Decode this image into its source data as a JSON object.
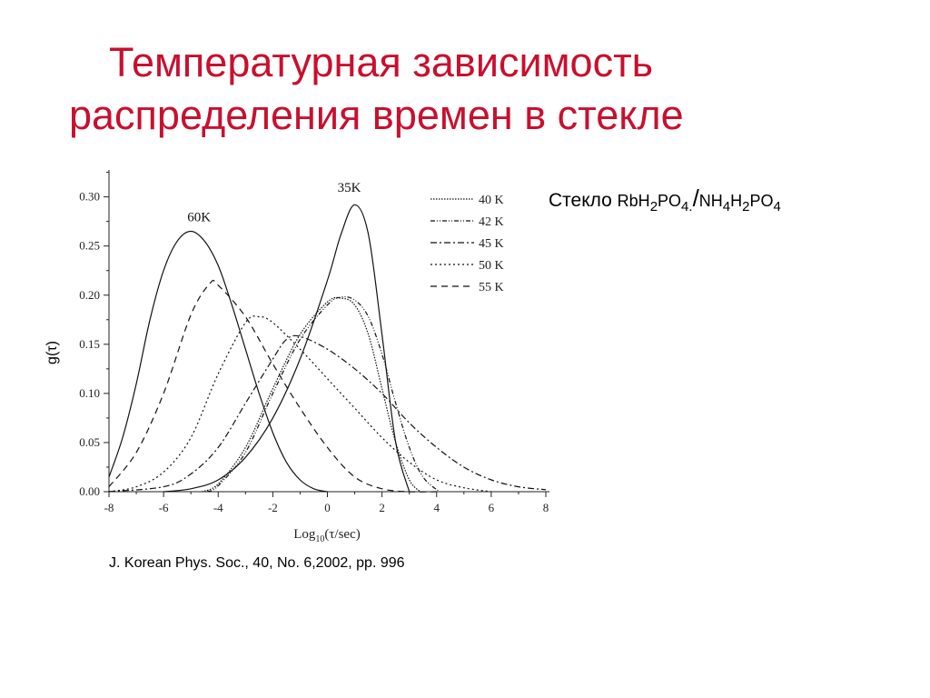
{
  "title": {
    "line1": "Температурная зависимость",
    "line2": "распределения времен в стекле"
  },
  "caption": {
    "prefix": "Стекло",
    "formula_a": {
      "p1": "RbH",
      "s1": "2",
      "p2": "PO",
      "s2": "4.",
      "slash": "/"
    },
    "formula_b": {
      "p1": "NH",
      "s1": "4",
      "p2": "H",
      "s2": "2",
      "p3": "PO",
      "s3": "4"
    }
  },
  "reference": "J. Korean Phys. Soc., 40, No. 6,2002, pp. 996",
  "chart_data": {
    "type": "line",
    "xlabel": "Log10(τ/sec)",
    "xlabel_parts": {
      "main": "Log",
      "sub": "10",
      "rest": "(τ/sec)"
    },
    "ylabel": "g(τ)",
    "xlim": [
      -8,
      8
    ],
    "ylim": [
      0,
      0.32
    ],
    "xticks": [
      -8,
      -6,
      -4,
      -2,
      0,
      2,
      4,
      6,
      8
    ],
    "xtick_labels": [
      "-8",
      "-6",
      "-4",
      "-2",
      "0",
      "2",
      "4",
      "6",
      "8"
    ],
    "yticks": [
      0,
      0.05,
      0.1,
      0.15,
      0.2,
      0.25,
      0.3
    ],
    "ytick_labels": [
      "0.00",
      "0.05",
      "0.10",
      "0.15",
      "0.20",
      "0.25",
      "0.30"
    ],
    "grid": false,
    "legend_position": "top-right",
    "annotations": [
      {
        "text": "60K",
        "x": -4.7,
        "y": 0.275
      },
      {
        "text": "35K",
        "x": 0.8,
        "y": 0.305
      }
    ],
    "series": [
      {
        "name": "",
        "curve_label": "35K",
        "dash": "",
        "x": [
          -6,
          -5,
          -4,
          -3,
          -2,
          -1,
          0,
          0.5,
          1,
          1.5,
          2,
          2.5,
          3
        ],
        "y": [
          0,
          0.003,
          0.012,
          0.035,
          0.075,
          0.135,
          0.215,
          0.262,
          0.292,
          0.262,
          0.16,
          0.05,
          0
        ]
      },
      {
        "name": "40 K",
        "dash": "1.5,1.5",
        "x": [
          -4.6,
          -4,
          -3,
          -2,
          -1,
          0,
          0.5,
          1,
          1.5,
          2,
          2.5,
          3,
          3.4
        ],
        "y": [
          0,
          0.008,
          0.045,
          0.105,
          0.16,
          0.193,
          0.197,
          0.19,
          0.16,
          0.105,
          0.05,
          0.012,
          0
        ]
      },
      {
        "name": "42 K",
        "dash": "5,2,1,2,1,2",
        "x": [
          -4.4,
          -4,
          -3,
          -2,
          -1,
          0,
          0.5,
          1,
          1.5,
          2,
          2.5,
          3,
          3.5,
          4.1
        ],
        "y": [
          0,
          0.006,
          0.04,
          0.1,
          0.155,
          0.19,
          0.198,
          0.195,
          0.178,
          0.14,
          0.09,
          0.045,
          0.015,
          0
        ]
      },
      {
        "name": "45 K",
        "dash": "7,3,2,3",
        "x": [
          -8,
          -6,
          -5,
          -4,
          -3,
          -2,
          -1.5,
          -1,
          0,
          1,
          2,
          3,
          4,
          5,
          6,
          7,
          8
        ],
        "y": [
          0,
          0.005,
          0.018,
          0.045,
          0.09,
          0.135,
          0.155,
          0.158,
          0.145,
          0.125,
          0.1,
          0.07,
          0.045,
          0.025,
          0.012,
          0.005,
          0.002
        ]
      },
      {
        "name": "50 K",
        "dash": "2,3",
        "x": [
          -8,
          -7,
          -6,
          -5,
          -4,
          -3,
          -2.5,
          -2,
          -1,
          0,
          1,
          2,
          3,
          4,
          5,
          6
        ],
        "y": [
          0,
          0.005,
          0.02,
          0.055,
          0.12,
          0.172,
          0.178,
          0.172,
          0.145,
          0.115,
          0.085,
          0.055,
          0.03,
          0.012,
          0.004,
          0
        ]
      },
      {
        "name": "55 K",
        "dash": "7,5",
        "x": [
          -8,
          -7,
          -6,
          -5,
          -4.3,
          -4,
          -3,
          -2,
          -1,
          0,
          1,
          2,
          3,
          4
        ],
        "y": [
          0.005,
          0.04,
          0.1,
          0.18,
          0.212,
          0.21,
          0.178,
          0.13,
          0.085,
          0.045,
          0.015,
          0.003,
          0,
          0
        ]
      },
      {
        "name": "",
        "curve_label": "60K",
        "dash": "",
        "x": [
          -8,
          -7.5,
          -7,
          -6.5,
          -6,
          -5.5,
          -5,
          -4.5,
          -4,
          -3.5,
          -3,
          -2.5,
          -2,
          -1.5,
          -1,
          -0.5,
          0
        ],
        "y": [
          0.015,
          0.055,
          0.11,
          0.175,
          0.225,
          0.255,
          0.265,
          0.255,
          0.23,
          0.19,
          0.145,
          0.1,
          0.06,
          0.03,
          0.012,
          0.003,
          0
        ]
      }
    ]
  }
}
